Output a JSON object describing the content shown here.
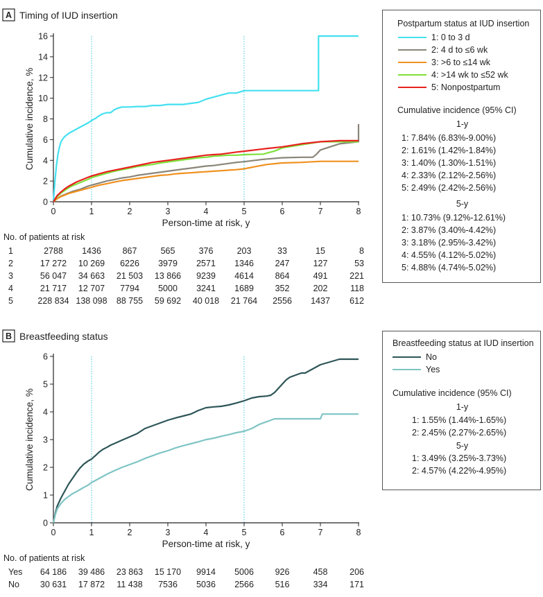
{
  "panelA": {
    "letter": "A",
    "title": "Timing of IUD insertion",
    "chart_data": {
      "type": "line",
      "title": "Timing of IUD insertion",
      "xlabel": "Person-time at risk, y",
      "ylabel": "Cumulative incidence, %",
      "xlim": [
        0,
        8
      ],
      "ylim": [
        0,
        16
      ],
      "xticks": [
        0,
        1,
        2,
        3,
        4,
        5,
        6,
        7,
        8
      ],
      "yticks": [
        0,
        2,
        4,
        6,
        8,
        10,
        12,
        14,
        16
      ],
      "reference_lines_x": [
        1,
        5
      ],
      "series": [
        {
          "name": "1: 0 to 3 d",
          "color": "#44e0f0",
          "x": [
            0,
            0.04,
            0.08,
            0.12,
            0.16,
            0.2,
            0.25,
            0.3,
            0.4,
            0.5,
            0.6,
            0.7,
            0.8,
            0.9,
            1.0,
            1.1,
            1.2,
            1.3,
            1.4,
            1.5,
            1.6,
            1.7,
            1.8,
            2.0,
            2.2,
            2.4,
            2.6,
            2.8,
            3.0,
            3.2,
            3.4,
            3.6,
            3.8,
            4.0,
            4.2,
            4.4,
            4.6,
            4.8,
            5.0,
            5.5,
            6.0,
            6.5,
            6.95,
            6.95,
            7.5,
            8.0
          ],
          "y": [
            0,
            2.0,
            3.5,
            4.6,
            5.3,
            5.8,
            6.1,
            6.3,
            6.6,
            6.8,
            7.0,
            7.2,
            7.4,
            7.6,
            7.84,
            8.05,
            8.3,
            8.5,
            8.6,
            8.6,
            8.9,
            9.05,
            9.15,
            9.15,
            9.2,
            9.2,
            9.3,
            9.3,
            9.4,
            9.4,
            9.4,
            9.5,
            9.6,
            9.9,
            10.1,
            10.3,
            10.5,
            10.5,
            10.73,
            10.73,
            10.73,
            10.73,
            10.73,
            16.0,
            16.0,
            16.0
          ]
        },
        {
          "name": "2: 4 d to ≤6 wk",
          "color": "#8a8578",
          "x": [
            0,
            0.1,
            0.2,
            0.3,
            0.4,
            0.5,
            0.6,
            0.7,
            0.8,
            0.9,
            1.0,
            1.2,
            1.4,
            1.6,
            1.8,
            2.0,
            2.2,
            2.4,
            2.6,
            2.8,
            3.0,
            3.2,
            3.4,
            3.6,
            3.8,
            4.0,
            4.2,
            4.4,
            4.6,
            4.8,
            5.0,
            5.5,
            6.0,
            6.5,
            6.8,
            6.9,
            7.0,
            7.5,
            8.0,
            8.0
          ],
          "y": [
            0,
            0.3,
            0.55,
            0.7,
            0.85,
            1.0,
            1.1,
            1.2,
            1.35,
            1.5,
            1.61,
            1.8,
            2.0,
            2.15,
            2.3,
            2.4,
            2.55,
            2.65,
            2.75,
            2.85,
            2.95,
            3.05,
            3.15,
            3.25,
            3.35,
            3.45,
            3.5,
            3.6,
            3.7,
            3.8,
            3.87,
            4.1,
            4.25,
            4.3,
            4.3,
            4.6,
            5.0,
            5.6,
            5.8,
            7.5
          ]
        },
        {
          "name": "3: >6 to ≤14 wk",
          "color": "#f0901e",
          "x": [
            0,
            0.1,
            0.2,
            0.3,
            0.4,
            0.5,
            0.6,
            0.7,
            0.8,
            0.9,
            1.0,
            1.2,
            1.4,
            1.6,
            1.8,
            2.0,
            2.2,
            2.4,
            2.6,
            2.8,
            3.0,
            3.2,
            3.4,
            3.6,
            3.8,
            4.0,
            4.2,
            4.4,
            4.6,
            4.8,
            5.0,
            5.3,
            5.6,
            6.0,
            6.5,
            7.0,
            7.5,
            8.0
          ],
          "y": [
            0,
            0.3,
            0.5,
            0.65,
            0.8,
            0.9,
            1.0,
            1.1,
            1.2,
            1.3,
            1.4,
            1.6,
            1.75,
            1.9,
            2.05,
            2.15,
            2.25,
            2.35,
            2.45,
            2.55,
            2.6,
            2.7,
            2.75,
            2.8,
            2.85,
            2.9,
            2.95,
            3.0,
            3.05,
            3.1,
            3.18,
            3.4,
            3.6,
            3.75,
            3.8,
            3.9,
            3.9,
            3.9
          ]
        },
        {
          "name": "4: >14 wk to ≤52 wk",
          "color": "#7ee03a",
          "x": [
            0,
            0.1,
            0.2,
            0.3,
            0.4,
            0.5,
            0.6,
            0.7,
            0.8,
            0.9,
            1.0,
            1.2,
            1.4,
            1.6,
            1.8,
            2.0,
            2.2,
            2.4,
            2.6,
            2.8,
            3.0,
            3.2,
            3.4,
            3.6,
            3.8,
            4.0,
            4.2,
            4.4,
            4.6,
            4.8,
            5.0,
            5.5,
            5.8,
            6.0,
            6.5,
            7.0,
            7.5,
            8.0
          ],
          "y": [
            0,
            0.5,
            0.85,
            1.1,
            1.35,
            1.55,
            1.7,
            1.85,
            2.0,
            2.15,
            2.33,
            2.55,
            2.75,
            2.95,
            3.1,
            3.25,
            3.4,
            3.5,
            3.6,
            3.75,
            3.85,
            3.95,
            4.05,
            4.15,
            4.25,
            4.3,
            4.4,
            4.45,
            4.5,
            4.5,
            4.55,
            4.6,
            4.9,
            5.2,
            5.5,
            5.8,
            5.8,
            5.8
          ]
        },
        {
          "name": "5: Nonpostpartum",
          "color": "#e8201e",
          "x": [
            0,
            0.1,
            0.2,
            0.3,
            0.4,
            0.5,
            0.6,
            0.7,
            0.8,
            0.9,
            1.0,
            1.2,
            1.4,
            1.6,
            1.8,
            2.0,
            2.2,
            2.4,
            2.6,
            2.8,
            3.0,
            3.2,
            3.4,
            3.6,
            3.8,
            4.0,
            4.2,
            4.4,
            4.6,
            4.8,
            5.0,
            5.5,
            6.0,
            6.5,
            7.0,
            7.5,
            8.0
          ],
          "y": [
            0,
            0.6,
            0.95,
            1.25,
            1.5,
            1.7,
            1.9,
            2.05,
            2.2,
            2.35,
            2.49,
            2.7,
            2.9,
            3.05,
            3.2,
            3.35,
            3.5,
            3.65,
            3.8,
            3.9,
            4.0,
            4.1,
            4.2,
            4.3,
            4.4,
            4.5,
            4.55,
            4.6,
            4.7,
            4.8,
            4.88,
            5.1,
            5.3,
            5.6,
            5.8,
            5.9,
            5.9
          ]
        }
      ]
    },
    "legend": {
      "title": "Postpartum status at IUD insertion",
      "items": [
        {
          "label": "1: 0 to 3 d",
          "color": "#44e0f0"
        },
        {
          "label": "2: 4 d to ≤6 wk",
          "color": "#8a8578"
        },
        {
          "label": "3: >6 to ≤14 wk",
          "color": "#f0901e"
        },
        {
          "label": "4: >14 wk to ≤52 wk",
          "color": "#7ee03a"
        },
        {
          "label": "5: Nonpostpartum",
          "color": "#e8201e"
        }
      ],
      "ci_title": "Cumulative incidence (95% CI)",
      "h1": "1-y",
      "ci_1y": [
        "1: 7.84% (6.83%-9.00%)",
        "2: 1.61% (1.42%-1.84%)",
        "3: 1.40% (1.30%-1.51%)",
        "4: 2.33% (2.12%-2.56%)",
        "5: 2.49% (2.42%-2.56%)"
      ],
      "h5": "5-y",
      "ci_5y": [
        "1: 10.73% (9.12%-12.61%)",
        "2: 3.87% (3.40%-4.42%)",
        "3: 3.18% (2.95%-3.42%)",
        "4: 4.55% (4.12%-5.02%)",
        "5: 4.88% (4.74%-5.02%)"
      ]
    },
    "risk": {
      "title": "No. of patients at risk",
      "rows": [
        {
          "label": "1",
          "values": [
            "2788",
            "1436",
            "867",
            "565",
            "376",
            "203",
            "33",
            "15",
            "8"
          ]
        },
        {
          "label": "2",
          "values": [
            "17 272",
            "10 269",
            "6226",
            "3979",
            "2571",
            "1346",
            "247",
            "127",
            "53"
          ]
        },
        {
          "label": "3",
          "values": [
            "56 047",
            "34 663",
            "21 503",
            "13 866",
            "9239",
            "4614",
            "864",
            "491",
            "221"
          ]
        },
        {
          "label": "4",
          "values": [
            "21 717",
            "12 707",
            "7794",
            "5000",
            "3241",
            "1689",
            "352",
            "202",
            "118"
          ]
        },
        {
          "label": "5",
          "values": [
            "228 834",
            "138 098",
            "88 755",
            "59 692",
            "40 018",
            "21 764",
            "2556",
            "1437",
            "612"
          ]
        }
      ]
    }
  },
  "panelB": {
    "letter": "B",
    "title": "Breastfeeding status",
    "chart_data": {
      "type": "line",
      "title": "Breastfeeding status",
      "xlabel": "Person-time at risk, y",
      "ylabel": "Cumulative incidence, %",
      "xlim": [
        0,
        8
      ],
      "ylim": [
        0,
        6
      ],
      "xticks": [
        0,
        1,
        2,
        3,
        4,
        5,
        6,
        7,
        8
      ],
      "yticks": [
        0,
        1,
        2,
        3,
        4,
        5,
        6
      ],
      "reference_lines_x": [
        1,
        5
      ],
      "series": [
        {
          "name": "No",
          "color": "#2d5557",
          "x": [
            0,
            0.05,
            0.1,
            0.2,
            0.3,
            0.4,
            0.5,
            0.6,
            0.7,
            0.8,
            0.9,
            1.0,
            1.1,
            1.2,
            1.3,
            1.4,
            1.5,
            1.6,
            1.8,
            2.0,
            2.2,
            2.4,
            2.6,
            2.8,
            3.0,
            3.2,
            3.4,
            3.6,
            3.8,
            4.0,
            4.2,
            4.4,
            4.6,
            4.8,
            5.0,
            5.2,
            5.4,
            5.6,
            5.7,
            5.8,
            5.9,
            6.0,
            6.1,
            6.2,
            6.5,
            6.6,
            6.8,
            7.0,
            7.5,
            8.0
          ],
          "y": [
            0,
            0.35,
            0.6,
            0.9,
            1.15,
            1.4,
            1.6,
            1.8,
            1.98,
            2.12,
            2.22,
            2.3,
            2.42,
            2.55,
            2.65,
            2.72,
            2.8,
            2.86,
            2.98,
            3.1,
            3.22,
            3.4,
            3.5,
            3.6,
            3.7,
            3.78,
            3.85,
            3.92,
            4.05,
            4.15,
            4.18,
            4.2,
            4.25,
            4.32,
            4.4,
            4.5,
            4.55,
            4.57,
            4.6,
            4.7,
            4.85,
            5.0,
            5.15,
            5.25,
            5.4,
            5.4,
            5.55,
            5.7,
            5.9,
            5.9
          ]
        },
        {
          "name": "Yes",
          "color": "#7fc4c4",
          "x": [
            0,
            0.05,
            0.1,
            0.2,
            0.3,
            0.4,
            0.5,
            0.6,
            0.7,
            0.8,
            0.9,
            1.0,
            1.2,
            1.4,
            1.6,
            1.8,
            2.0,
            2.2,
            2.4,
            2.6,
            2.8,
            3.0,
            3.2,
            3.4,
            3.6,
            3.8,
            4.0,
            4.2,
            4.4,
            4.6,
            4.8,
            5.0,
            5.2,
            5.4,
            5.6,
            5.8,
            6.0,
            6.5,
            7.0,
            7.05,
            7.5,
            8.0
          ],
          "y": [
            0,
            0.3,
            0.5,
            0.7,
            0.85,
            0.95,
            1.05,
            1.12,
            1.2,
            1.28,
            1.35,
            1.45,
            1.6,
            1.75,
            1.88,
            2.0,
            2.1,
            2.2,
            2.32,
            2.42,
            2.52,
            2.6,
            2.7,
            2.78,
            2.85,
            2.92,
            3.0,
            3.05,
            3.12,
            3.18,
            3.25,
            3.3,
            3.4,
            3.55,
            3.65,
            3.75,
            3.75,
            3.75,
            3.75,
            3.92,
            3.92,
            3.92
          ]
        }
      ]
    },
    "legend": {
      "title": "Breastfeeding status at IUD insertion",
      "items": [
        {
          "label": "No",
          "color": "#2d5557"
        },
        {
          "label": "Yes",
          "color": "#7fc4c4"
        }
      ],
      "ci_title": "Cumulative incidence (95% CI)",
      "h1": "1-y",
      "ci_1y": [
        "1: 1.55% (1.44%-1.65%)",
        "2: 2.45% (2.27%-2.65%)"
      ],
      "h5": "5-y",
      "ci_5y": [
        "1: 3.49% (3.25%-3.73%)",
        "2: 4.57% (4.22%-4.95%)"
      ]
    },
    "risk": {
      "title": "No. of patients at risk",
      "rows": [
        {
          "label": "Yes",
          "values": [
            "64 186",
            "39 486",
            "23 863",
            "15 170",
            "9914",
            "5006",
            "926",
            "458",
            "206"
          ]
        },
        {
          "label": "No",
          "values": [
            "30 631",
            "17 872",
            "11 438",
            "7536",
            "5036",
            "2566",
            "516",
            "334",
            "171"
          ]
        }
      ]
    }
  }
}
